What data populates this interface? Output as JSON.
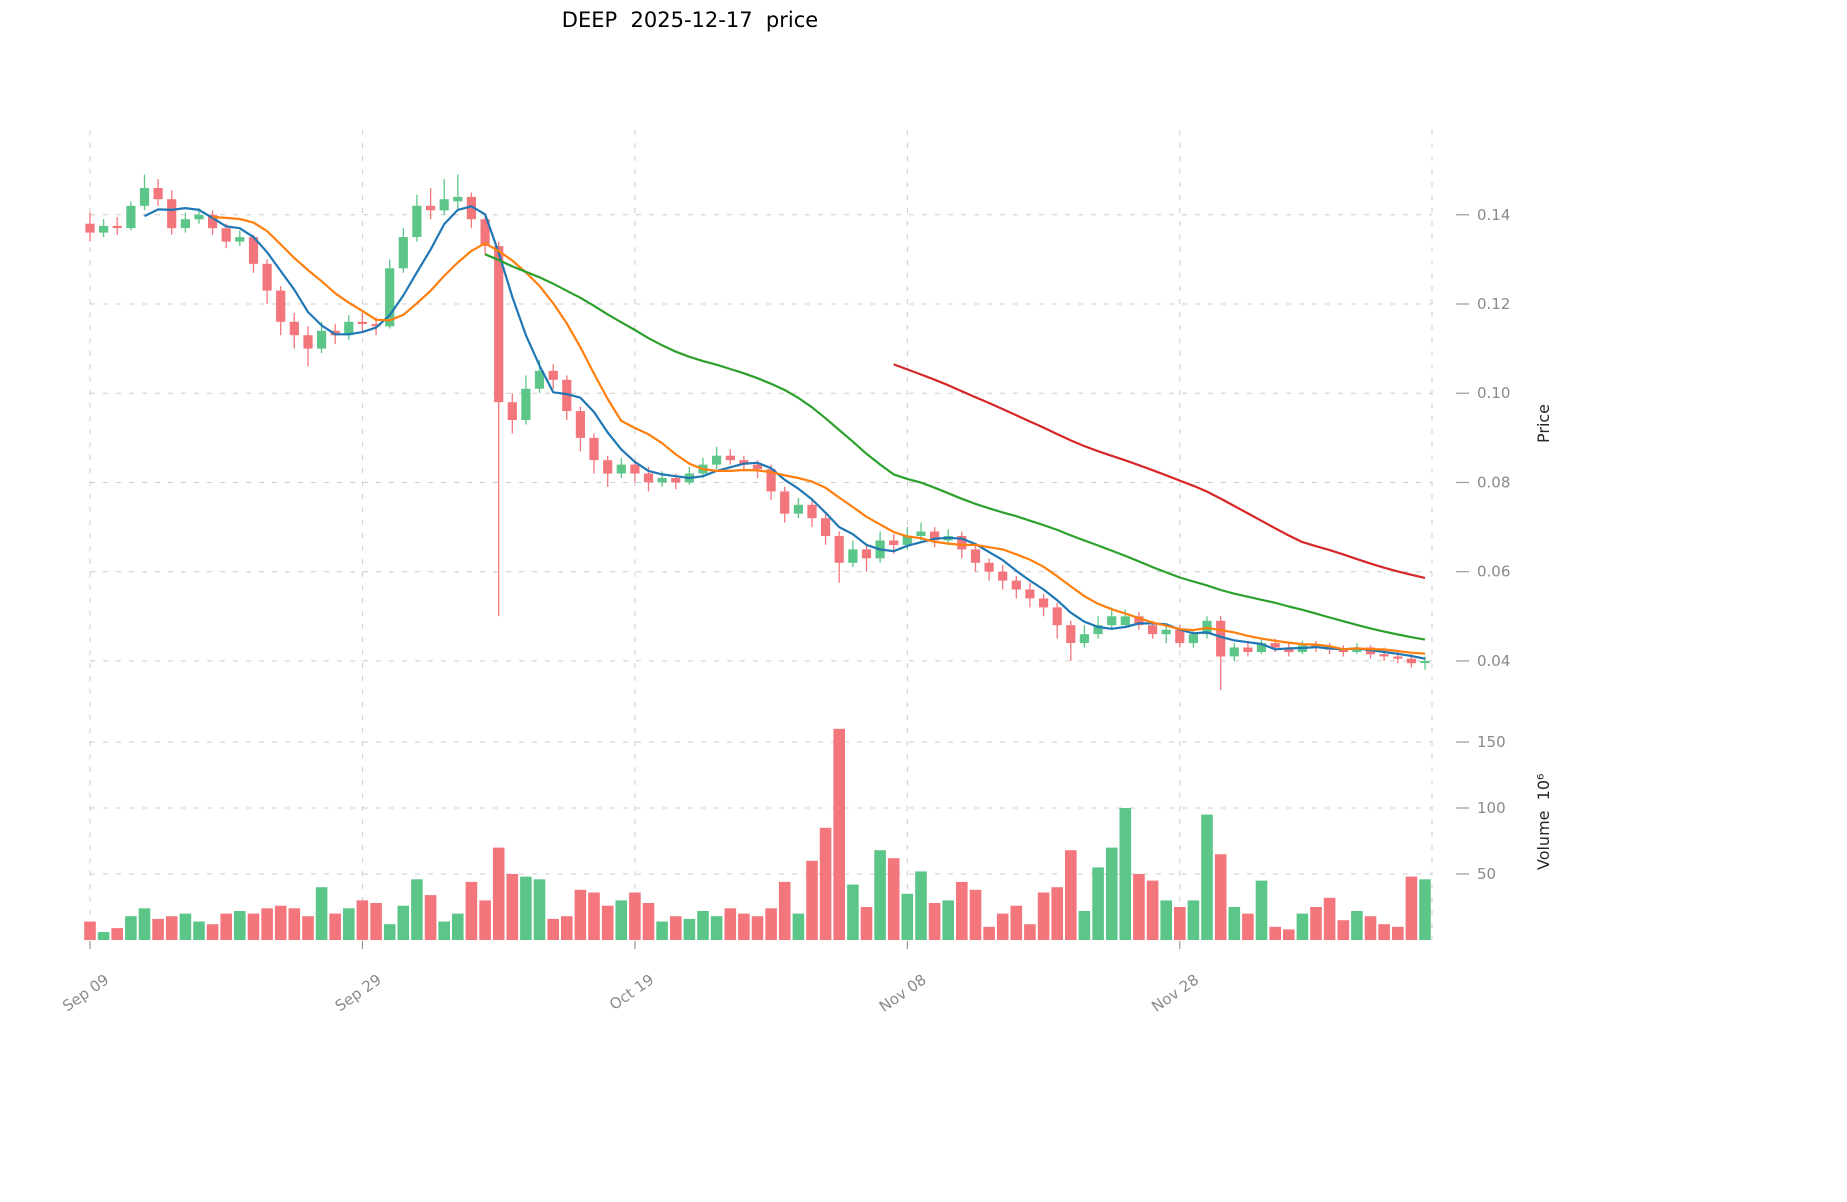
{
  "title": "DEEP  2025-12-17  price",
  "colors": {
    "up": "#5cc689",
    "down": "#f4767d",
    "grid": "#cccccc",
    "tick_text": "#8a8a8a",
    "ma_fast": "#1f77b4",
    "ma_mid": "#ff7f0e",
    "ma_slow": "#2ca02c",
    "ma_long": "#d62728"
  },
  "chart_data": {
    "type": "candlestick",
    "title": "DEEP  2025-12-17  price",
    "ylabel": "Price",
    "ylabel2": "Volume  10⁶",
    "grid": true,
    "price_range": [
      0.029,
      0.159
    ],
    "price_ticks": [
      {
        "value": 0.04,
        "label": "0.04"
      },
      {
        "value": 0.06,
        "label": "0.06"
      },
      {
        "value": 0.08,
        "label": "0.08"
      },
      {
        "value": 0.1,
        "label": "0.10"
      },
      {
        "value": 0.12,
        "label": "0.12"
      },
      {
        "value": 0.14,
        "label": "0.14"
      }
    ],
    "volume_ticks": [
      {
        "value": 50,
        "label": "50"
      },
      {
        "value": 100,
        "label": "100"
      },
      {
        "value": 150,
        "label": "150"
      }
    ],
    "x_ticks": [
      {
        "index": 0,
        "label": "Sep 09"
      },
      {
        "index": 20,
        "label": "Sep 29"
      },
      {
        "index": 40,
        "label": "Oct 19"
      },
      {
        "index": 60,
        "label": "Nov 08"
      },
      {
        "index": 80,
        "label": "Nov 28"
      }
    ],
    "moving_averages": [
      {
        "period": 5,
        "color": "#1f77b4"
      },
      {
        "period": 10,
        "color": "#ff7f0e"
      },
      {
        "period": 30,
        "color": "#2ca02c"
      },
      {
        "period": 60,
        "color": "#d62728"
      }
    ],
    "open": [
      0.138,
      0.136,
      0.1375,
      0.137,
      0.142,
      0.146,
      0.1435,
      0.137,
      0.139,
      0.14,
      0.137,
      0.134,
      0.135,
      0.129,
      0.123,
      0.116,
      0.113,
      0.11,
      0.114,
      0.113,
      0.116,
      0.1155,
      0.115,
      0.128,
      0.135,
      0.142,
      0.141,
      0.143,
      0.144,
      0.139,
      0.133,
      0.098,
      0.094,
      0.101,
      0.105,
      0.103,
      0.096,
      0.09,
      0.085,
      0.082,
      0.084,
      0.082,
      0.08,
      0.081,
      0.08,
      0.082,
      0.084,
      0.086,
      0.085,
      0.084,
      0.083,
      0.078,
      0.073,
      0.075,
      0.072,
      0.068,
      0.062,
      0.065,
      0.063,
      0.067,
      0.066,
      0.068,
      0.069,
      0.067,
      0.068,
      0.065,
      0.062,
      0.06,
      0.058,
      0.056,
      0.054,
      0.052,
      0.048,
      0.044,
      0.046,
      0.048,
      0.048,
      0.05,
      0.048,
      0.046,
      0.047,
      0.044,
      0.046,
      0.049,
      0.041,
      0.043,
      0.042,
      0.044,
      0.043,
      0.042,
      0.0435,
      0.043,
      0.0425,
      0.042,
      0.043,
      0.0415,
      0.041,
      0.0405,
      0.0395
    ],
    "high": [
      0.1405,
      0.139,
      0.1395,
      0.143,
      0.149,
      0.148,
      0.1455,
      0.1405,
      0.1415,
      0.141,
      0.138,
      0.1365,
      0.1355,
      0.13,
      0.124,
      0.118,
      0.115,
      0.116,
      0.1155,
      0.1175,
      0.118,
      0.117,
      0.13,
      0.137,
      0.1445,
      0.146,
      0.148,
      0.149,
      0.145,
      0.14,
      0.134,
      0.1,
      0.104,
      0.1075,
      0.1065,
      0.104,
      0.097,
      0.091,
      0.086,
      0.0855,
      0.085,
      0.0835,
      0.0825,
      0.082,
      0.0835,
      0.0855,
      0.088,
      0.0875,
      0.086,
      0.085,
      0.084,
      0.079,
      0.0765,
      0.076,
      0.073,
      0.069,
      0.067,
      0.066,
      0.069,
      0.0685,
      0.07,
      0.071,
      0.07,
      0.0695,
      0.069,
      0.066,
      0.063,
      0.0615,
      0.059,
      0.0575,
      0.055,
      0.053,
      0.049,
      0.048,
      0.05,
      0.052,
      0.0515,
      0.051,
      0.049,
      0.048,
      0.048,
      0.047,
      0.05,
      0.05,
      0.044,
      0.0445,
      0.045,
      0.045,
      0.044,
      0.0445,
      0.0445,
      0.044,
      0.0435,
      0.044,
      0.0435,
      0.043,
      0.0425,
      0.0415,
      0.041
    ],
    "low": [
      0.134,
      0.135,
      0.1355,
      0.1365,
      0.141,
      0.142,
      0.1355,
      0.136,
      0.138,
      0.1355,
      0.1325,
      0.133,
      0.127,
      0.12,
      0.113,
      0.11,
      0.106,
      0.109,
      0.111,
      0.112,
      0.114,
      0.113,
      0.1145,
      0.127,
      0.134,
      0.139,
      0.14,
      0.141,
      0.137,
      0.131,
      0.05,
      0.091,
      0.093,
      0.1,
      0.101,
      0.094,
      0.087,
      0.082,
      0.079,
      0.081,
      0.08,
      0.078,
      0.079,
      0.0785,
      0.0795,
      0.081,
      0.083,
      0.084,
      0.0825,
      0.081,
      0.076,
      0.071,
      0.072,
      0.07,
      0.066,
      0.0575,
      0.061,
      0.06,
      0.062,
      0.064,
      0.065,
      0.067,
      0.0655,
      0.066,
      0.063,
      0.06,
      0.058,
      0.056,
      0.054,
      0.052,
      0.05,
      0.045,
      0.04,
      0.043,
      0.045,
      0.047,
      0.048,
      0.047,
      0.045,
      0.044,
      0.043,
      0.043,
      0.045,
      0.0335,
      0.04,
      0.041,
      0.0415,
      0.042,
      0.041,
      0.0415,
      0.042,
      0.0415,
      0.041,
      0.0415,
      0.0405,
      0.04,
      0.0395,
      0.0385,
      0.038
    ],
    "close": [
      0.136,
      0.1375,
      0.137,
      0.142,
      0.146,
      0.1435,
      0.137,
      0.139,
      0.14,
      0.137,
      0.134,
      0.135,
      0.129,
      0.123,
      0.116,
      0.113,
      0.11,
      0.114,
      0.113,
      0.116,
      0.1155,
      0.115,
      0.128,
      0.135,
      0.142,
      0.141,
      0.1435,
      0.144,
      0.139,
      0.133,
      0.098,
      0.094,
      0.101,
      0.105,
      0.103,
      0.096,
      0.09,
      0.085,
      0.082,
      0.084,
      0.082,
      0.08,
      0.081,
      0.08,
      0.082,
      0.084,
      0.086,
      0.085,
      0.084,
      0.083,
      0.078,
      0.073,
      0.075,
      0.072,
      0.068,
      0.062,
      0.065,
      0.063,
      0.067,
      0.066,
      0.068,
      0.069,
      0.067,
      0.068,
      0.065,
      0.062,
      0.06,
      0.058,
      0.056,
      0.054,
      0.052,
      0.048,
      0.044,
      0.046,
      0.048,
      0.05,
      0.05,
      0.048,
      0.046,
      0.047,
      0.044,
      0.046,
      0.049,
      0.041,
      0.043,
      0.042,
      0.044,
      0.043,
      0.042,
      0.0435,
      0.043,
      0.0425,
      0.042,
      0.043,
      0.0415,
      0.041,
      0.0405,
      0.0395,
      0.04
    ],
    "volume_millions": [
      14,
      6,
      9,
      18,
      24,
      16,
      18,
      20,
      14,
      12,
      20,
      22,
      20,
      24,
      26,
      24,
      18,
      40,
      20,
      24,
      30,
      28,
      12,
      26,
      46,
      34,
      14,
      20,
      44,
      30,
      70,
      50,
      48,
      46,
      16,
      18,
      38,
      36,
      26,
      30,
      36,
      28,
      14,
      18,
      16,
      22,
      18,
      24,
      20,
      18,
      24,
      44,
      20,
      60,
      85,
      160,
      42,
      25,
      68,
      62,
      35,
      52,
      28,
      30,
      44,
      38,
      10,
      20,
      26,
      12,
      36,
      40,
      68,
      22,
      55,
      70,
      100,
      50,
      45,
      30,
      25,
      30,
      95,
      65,
      25,
      20,
      45,
      10,
      8,
      20,
      25,
      32,
      15,
      22,
      18,
      12,
      10,
      48,
      46
    ]
  }
}
